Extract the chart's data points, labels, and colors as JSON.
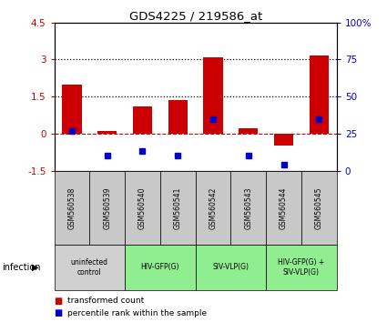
{
  "title": "GDS4225 / 219586_at",
  "samples": [
    "GSM560538",
    "GSM560539",
    "GSM560540",
    "GSM560541",
    "GSM560542",
    "GSM560543",
    "GSM560544",
    "GSM560545"
  ],
  "red_values": [
    2.0,
    0.12,
    1.1,
    1.35,
    3.1,
    0.2,
    -0.5,
    3.15
  ],
  "blue_values_pct": [
    27,
    10,
    13,
    10,
    35,
    10,
    4,
    35
  ],
  "ylim_left": [
    -1.5,
    4.5
  ],
  "ylim_right": [
    0,
    100
  ],
  "yticks_left": [
    -1.5,
    0.0,
    1.5,
    3.0,
    4.5
  ],
  "yticks_right": [
    0,
    25,
    50,
    75,
    100
  ],
  "ytick_labels_left": [
    "-1.5",
    "0",
    "1.5",
    "3",
    "4.5"
  ],
  "ytick_labels_right": [
    "0",
    "25",
    "50",
    "75",
    "100%"
  ],
  "hlines": [
    1.5,
    3.0
  ],
  "hline_zero_color": "#cc0000",
  "hline_dotted_color": "#000000",
  "bar_width": 0.55,
  "red_color": "#cc0000",
  "blue_color": "#0000cc",
  "infection_label": "infection",
  "legend_red": "transformed count",
  "legend_blue": "percentile rank within the sample",
  "sample_bg_color": "#c8c8c8",
  "sample_border_color": "#000000",
  "group_spans": [
    [
      0,
      1,
      "uninfected\ncontrol",
      "#d0d0d0"
    ],
    [
      2,
      3,
      "HIV-GFP(G)",
      "#90ee90"
    ],
    [
      4,
      5,
      "SIV-VLP(G)",
      "#90ee90"
    ],
    [
      6,
      7,
      "HIV-GFP(G) +\nSIV-VLP(G)",
      "#90ee90"
    ]
  ]
}
